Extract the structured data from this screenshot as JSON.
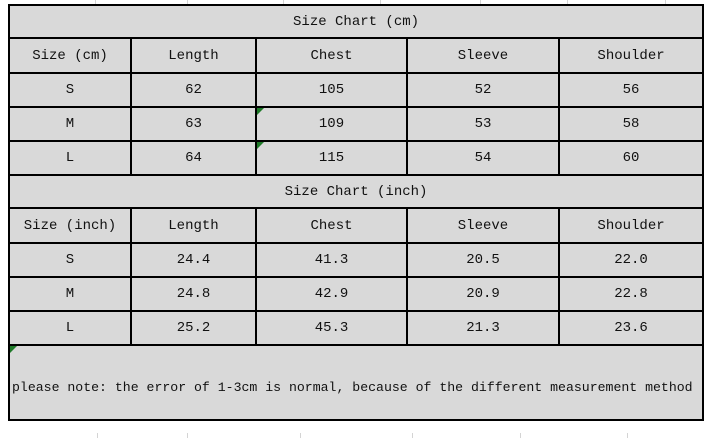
{
  "colors": {
    "cell_fill": "#d9d9d9",
    "border": "#000000",
    "marker_green": "#1e7a28",
    "background": "#ffffff"
  },
  "tables": {
    "cm": {
      "title": "Size Chart (cm)",
      "headers": [
        "Size (cm)",
        "Length",
        "Chest",
        "Sleeve",
        "Shoulder"
      ],
      "rows": [
        {
          "cells": [
            "S",
            "62",
            "105",
            "52",
            "56"
          ]
        },
        {
          "cells": [
            "M",
            "63",
            "109",
            "53",
            "58"
          ]
        },
        {
          "cells": [
            "L",
            "64",
            "115",
            "54",
            "60"
          ]
        }
      ]
    },
    "inch": {
      "title": "Size Chart (inch)",
      "headers": [
        "Size (inch)",
        "Length",
        "Chest",
        "Sleeve",
        "Shoulder"
      ],
      "rows": [
        {
          "cells": [
            "S",
            "24.4",
            "41.3",
            "20.5",
            "22.0"
          ]
        },
        {
          "cells": [
            "M",
            "24.8",
            "42.9",
            "20.9",
            "22.8"
          ]
        },
        {
          "cells": [
            "L",
            "25.2",
            "45.3",
            "21.3",
            "23.6"
          ]
        }
      ]
    }
  },
  "note": "please note: the error of 1-3cm is normal, because of the different measurement method",
  "markers": [
    {
      "cell": "cm-r1-c2"
    },
    {
      "cell": "cm-r2-c2"
    },
    {
      "cell": "note"
    }
  ]
}
